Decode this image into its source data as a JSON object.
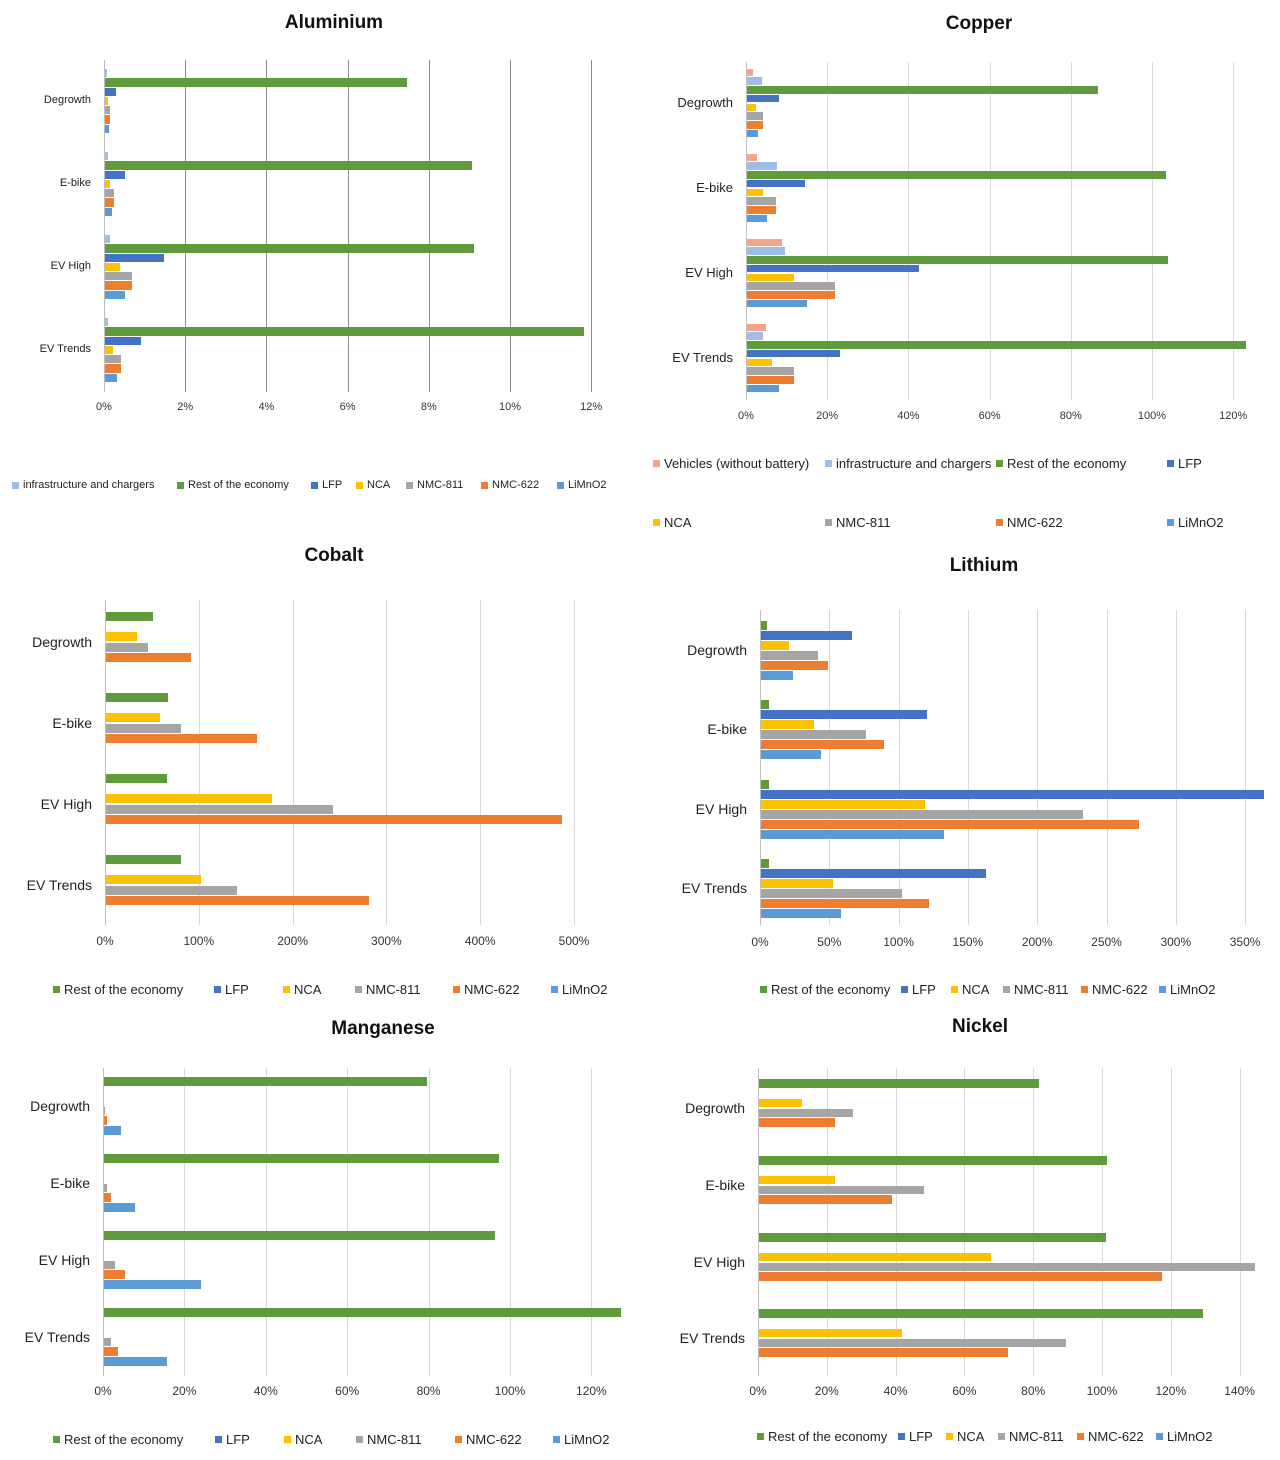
{
  "colors": {
    "Vehicles (without battery)": "#f4a48a",
    "infrastructure and chargers": "#9fbde6",
    "Rest of the economy": "#5f9b3b",
    "LFP": "#4472c4",
    "NCA": "#ffc000",
    "NMC-811": "#a5a5a5",
    "NMC-622": "#ed7d31",
    "LiMnO2": "#5b9bd5"
  },
  "chart_data": [
    {
      "type": "bar",
      "title": "Aluminium",
      "categories": [
        "Degrowth",
        "E-bike",
        "EV High",
        "EV Trends"
      ],
      "xlim": [
        0,
        12.6
      ],
      "xticks": [
        0,
        2,
        4,
        6,
        8,
        10,
        12
      ],
      "xtick_labels": [
        "0%",
        "2%",
        "4%",
        "6%",
        "8%",
        "10%",
        "12%"
      ],
      "legend": [
        "infrastructure and chargers",
        "Rest of the economy",
        "LFP",
        "NCA",
        "NMC-811",
        "NMC-622",
        "LiMnO2"
      ],
      "series": [
        {
          "name": "infrastructure and chargers",
          "values": [
            0.05,
            0.07,
            0.12,
            0.07
          ]
        },
        {
          "name": "Rest of the economy",
          "values": [
            7.44,
            9.04,
            9.09,
            11.8
          ]
        },
        {
          "name": "LFP",
          "values": [
            0.27,
            0.49,
            1.45,
            0.89
          ]
        },
        {
          "name": "NCA",
          "values": [
            0.07,
            0.12,
            0.37,
            0.2
          ]
        },
        {
          "name": "NMC-811",
          "values": [
            0.12,
            0.22,
            0.66,
            0.39
          ]
        },
        {
          "name": "NMC-622",
          "values": [
            0.12,
            0.22,
            0.66,
            0.39
          ]
        },
        {
          "name": "LiMnO2",
          "values": [
            0.1,
            0.17,
            0.49,
            0.3
          ]
        }
      ]
    },
    {
      "type": "bar",
      "title": "Copper",
      "categories": [
        "Degrowth",
        "E-bike",
        "EV High",
        "EV Trends"
      ],
      "xlim": [
        0,
        126
      ],
      "xticks": [
        0,
        20,
        40,
        60,
        80,
        100,
        120
      ],
      "xtick_labels": [
        "0%",
        "20%",
        "40%",
        "60%",
        "80%",
        "100%",
        "120%"
      ],
      "legend": [
        "Vehicles (without battery)",
        "infrastructure and chargers",
        "Rest of the economy",
        "LFP",
        "NCA",
        "NMC-811",
        "NMC-622",
        "LiMnO2"
      ],
      "series": [
        {
          "name": "Vehicles (without battery)",
          "values": [
            1.5,
            2.5,
            8.6,
            4.7
          ]
        },
        {
          "name": "infrastructure and chargers",
          "values": [
            3.7,
            7.4,
            9.4,
            3.9
          ]
        },
        {
          "name": "Rest of the economy",
          "values": [
            86.5,
            103.2,
            103.7,
            122.9
          ]
        },
        {
          "name": "LFP",
          "values": [
            7.9,
            14.3,
            42.4,
            22.9
          ]
        },
        {
          "name": "NCA",
          "values": [
            2.2,
            3.9,
            11.6,
            6.2
          ]
        },
        {
          "name": "NMC-811",
          "values": [
            3.9,
            7.1,
            21.7,
            11.6
          ]
        },
        {
          "name": "NMC-622",
          "values": [
            3.9,
            7.1,
            21.7,
            11.6
          ]
        },
        {
          "name": "LiMnO2",
          "values": [
            2.7,
            4.9,
            14.8,
            7.9
          ]
        }
      ]
    },
    {
      "type": "bar",
      "title": "Cobalt",
      "categories": [
        "Degrowth",
        "E-bike",
        "EV High",
        "EV Trends"
      ],
      "xlim": [
        0,
        525
      ],
      "xticks": [
        0,
        100,
        200,
        300,
        400,
        500
      ],
      "xtick_labels": [
        "0%",
        "100%",
        "200%",
        "300%",
        "400%",
        "500%"
      ],
      "legend": [
        "Rest of the economy",
        "LFP",
        "NCA",
        "NMC-811",
        "NMC-622",
        "LiMnO2"
      ],
      "series": [
        {
          "name": "Rest of the economy",
          "values": [
            50,
            66,
            65,
            80
          ]
        },
        {
          "name": "LFP",
          "values": [
            0,
            0,
            0,
            0
          ]
        },
        {
          "name": "NCA",
          "values": [
            33,
            58,
            177,
            101
          ]
        },
        {
          "name": "NMC-811",
          "values": [
            45,
            80,
            242,
            140
          ]
        },
        {
          "name": "NMC-622",
          "values": [
            91,
            161,
            486,
            280
          ]
        },
        {
          "name": "LiMnO2",
          "values": [
            0,
            0,
            0,
            0
          ]
        }
      ]
    },
    {
      "type": "bar",
      "title": "Lithium",
      "categories": [
        "Degrowth",
        "E-bike",
        "EV High",
        "EV Trends"
      ],
      "xlim": [
        0,
        365
      ],
      "xticks": [
        0,
        50,
        100,
        150,
        200,
        250,
        300,
        350
      ],
      "xtick_labels": [
        "0%",
        "50%",
        "100%",
        "150%",
        "200%",
        "250%",
        "300%",
        "350%"
      ],
      "legend": [
        "Rest of the economy",
        "LFP",
        "NCA",
        "NMC-811",
        "NMC-622",
        "LiMnO2"
      ],
      "series": [
        {
          "name": "Rest of the economy",
          "values": [
            4,
            6,
            6,
            6
          ]
        },
        {
          "name": "LFP",
          "values": [
            66,
            120,
            363,
            162
          ]
        },
        {
          "name": "NCA",
          "values": [
            20,
            38,
            118,
            52
          ]
        },
        {
          "name": "NMC-811",
          "values": [
            41,
            76,
            232,
            102
          ]
        },
        {
          "name": "NMC-622",
          "values": [
            48,
            89,
            273,
            121
          ]
        },
        {
          "name": "LiMnO2",
          "values": [
            23,
            43,
            132,
            58
          ]
        }
      ]
    },
    {
      "type": "bar",
      "title": "Manganese",
      "categories": [
        "Degrowth",
        "E-bike",
        "EV High",
        "EV Trends"
      ],
      "xlim": [
        0,
        127
      ],
      "xticks": [
        0,
        20,
        40,
        60,
        80,
        100,
        120
      ],
      "xtick_labels": [
        "0%",
        "20%",
        "40%",
        "60%",
        "80%",
        "100%",
        "120%"
      ],
      "legend": [
        "Rest of the economy",
        "LFP",
        "NCA",
        "NMC-811",
        "NMC-622",
        "LiMnO2"
      ],
      "series": [
        {
          "name": "Rest of the economy",
          "values": [
            79.4,
            97,
            96,
            127
          ]
        },
        {
          "name": "LFP",
          "values": [
            0,
            0,
            0,
            0
          ]
        },
        {
          "name": "NCA",
          "values": [
            0,
            0,
            0,
            0
          ]
        },
        {
          "name": "NMC-811",
          "values": [
            0.3,
            0.8,
            2.7,
            1.7
          ]
        },
        {
          "name": "NMC-622",
          "values": [
            0.8,
            1.7,
            5.2,
            3.4
          ]
        },
        {
          "name": "LiMnO2",
          "values": [
            4.2,
            7.6,
            23.8,
            15.5
          ]
        }
      ]
    },
    {
      "type": "bar",
      "title": "Nickel",
      "categories": [
        "Degrowth",
        "E-bike",
        "EV High",
        "EV Trends"
      ],
      "xlim": [
        0,
        146
      ],
      "xticks": [
        0,
        20,
        40,
        60,
        80,
        100,
        120,
        140
      ],
      "xtick_labels": [
        "0%",
        "20%",
        "40%",
        "60%",
        "80%",
        "100%",
        "120%",
        "140%"
      ],
      "legend": [
        "Rest of the economy",
        "LFP",
        "NCA",
        "NMC-811",
        "NMC-622",
        "LiMnO2"
      ],
      "series": [
        {
          "name": "Rest of the economy",
          "values": [
            81.4,
            101.2,
            100.9,
            129.1
          ]
        },
        {
          "name": "LFP",
          "values": [
            0,
            0,
            0,
            0
          ]
        },
        {
          "name": "NCA",
          "values": [
            12.5,
            22.1,
            67.4,
            41.6
          ]
        },
        {
          "name": "NMC-811",
          "values": [
            27.3,
            48,
            144.2,
            89.2
          ]
        },
        {
          "name": "NMC-622",
          "values": [
            22.1,
            38.7,
            117.2,
            72.4
          ]
        },
        {
          "name": "LiMnO2",
          "values": [
            0,
            0,
            0,
            0
          ]
        }
      ]
    }
  ]
}
